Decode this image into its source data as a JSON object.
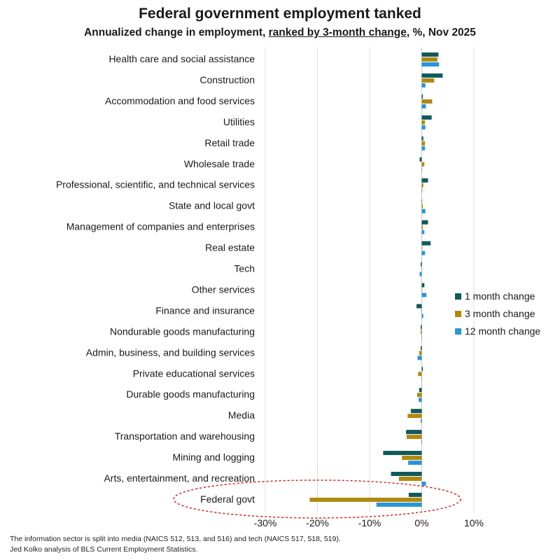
{
  "chart_data": {
    "type": "bar",
    "orientation": "horizontal",
    "title": "Federal government employment tanked",
    "subtitle": {
      "prefix": "Annualized change in employment, ",
      "underlined": "ranked by 3-month change",
      "suffix": ", %, Nov 2025"
    },
    "categories": [
      "Health care and social assistance",
      "Construction",
      "Accommodation and food services",
      "Utilities",
      "Retail trade",
      "Wholesale trade",
      "Professional, scientific, and technical services",
      "State and local govt",
      "Management of companies and enterprises",
      "Real estate",
      "Tech",
      "Other services",
      "Finance and insurance",
      "Nondurable goods manufacturing",
      "Admin, business, and building services",
      "Private educational services",
      "Durable goods manufacturing",
      "Media",
      "Transportation and warehousing",
      "Mining and logging",
      "Arts, entertainment, and recreation",
      "Federal govt"
    ],
    "series": [
      {
        "name": "1 month change",
        "color": "#0f5a5a",
        "values": [
          3.2,
          4.0,
          0.2,
          1.9,
          0.3,
          -0.4,
          1.2,
          0.0,
          1.2,
          1.7,
          -0.2,
          0.5,
          -1.0,
          -0.2,
          -0.2,
          0.2,
          -0.5,
          -2.1,
          -3.0,
          -7.4,
          -5.9,
          -2.5
        ]
      },
      {
        "name": "3 month change",
        "color": "#b08a10",
        "values": [
          3.0,
          2.4,
          2.0,
          0.6,
          0.6,
          0.5,
          0.3,
          0.2,
          0.2,
          0.1,
          0.0,
          0.0,
          -0.1,
          -0.2,
          -0.5,
          -0.7,
          -0.9,
          -2.7,
          -2.9,
          -3.8,
          -4.4,
          -21.5
        ]
      },
      {
        "name": "12 month change",
        "color": "#2b95d6",
        "values": [
          3.3,
          0.7,
          0.8,
          0.7,
          0.6,
          0.0,
          0.1,
          0.7,
          0.5,
          0.6,
          -0.4,
          0.9,
          0.3,
          0.0,
          -0.8,
          0.0,
          -0.6,
          -0.2,
          -0.1,
          -2.6,
          0.8,
          -8.7
        ]
      }
    ],
    "xlim": [
      -30,
      10
    ],
    "xticks": [
      -30,
      -20,
      -10,
      0,
      10
    ],
    "xtick_labels": [
      "-30%",
      "-20%",
      "-10%",
      "0%",
      "10%"
    ],
    "grid": "vertical",
    "legend_position": "right",
    "highlight": "Federal govt"
  },
  "footnotes": [
    "The information sector is split into media (NAICS 512, 513, and 516) and tech (NAICS 517, 518, 519).",
    "Jed Kolko analysis of BLS Current Employment Statistics."
  ]
}
